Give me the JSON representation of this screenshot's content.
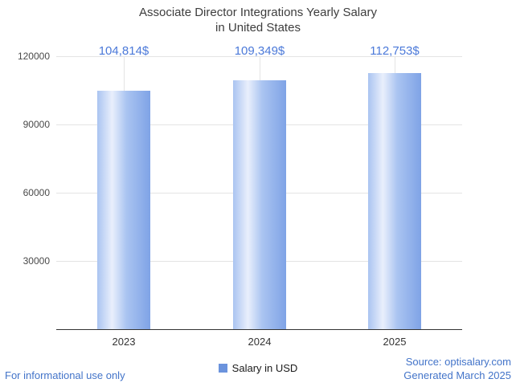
{
  "chart_data": {
    "type": "bar",
    "title": "Associate Director Integrations Yearly Salary in United States",
    "title_lines": [
      "Associate Director Integrations Yearly Salary",
      "in United States"
    ],
    "categories": [
      "2023",
      "2024",
      "2025"
    ],
    "series": [
      {
        "name": "Salary in USD",
        "values": [
          104814,
          109349,
          112753
        ]
      }
    ],
    "value_labels": [
      "104,814$",
      "109,349$",
      "112,753$"
    ],
    "ylim": [
      0,
      120000
    ],
    "yticks": [
      30000,
      60000,
      90000,
      120000
    ],
    "grid": true,
    "legend_position": "bottom",
    "bar_gradient": [
      "#aac4f1",
      "#e9effc",
      "#aac4f1",
      "#7fa3e6"
    ],
    "value_label_color": "#4b79d9"
  },
  "legend": {
    "label": "Salary in USD",
    "swatch_color": "#6b93dd"
  },
  "footer": {
    "left": "For informational use only",
    "source": "Source: optisalary.com",
    "generated": "Generated March 2025"
  }
}
